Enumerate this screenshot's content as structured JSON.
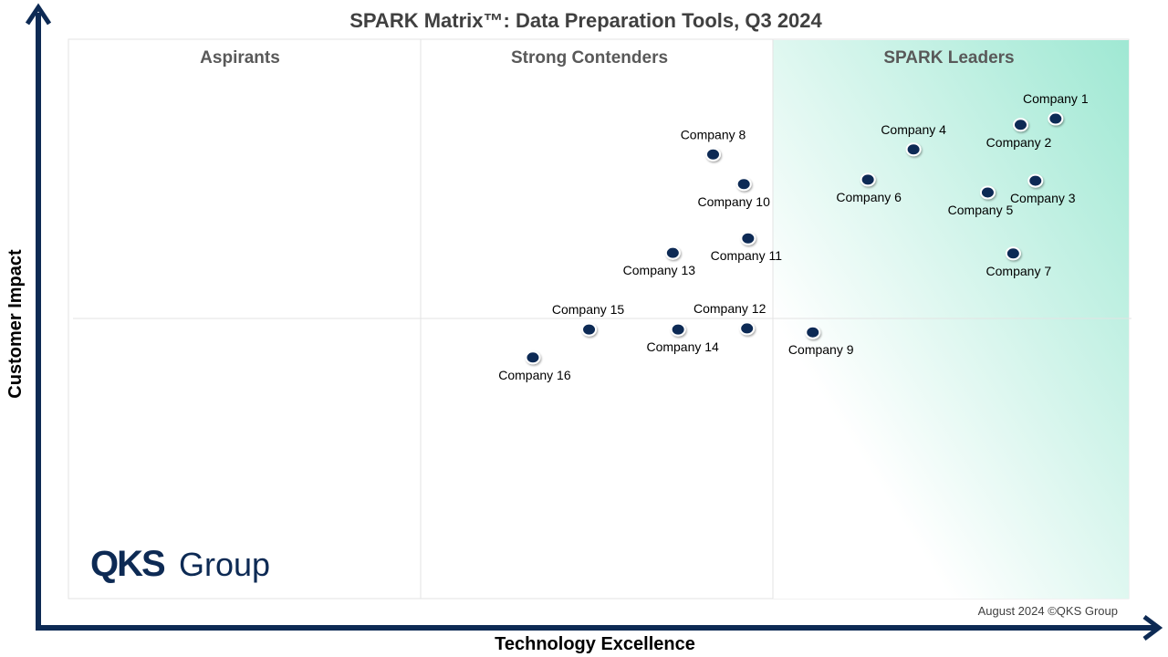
{
  "chart_data": {
    "type": "scatter",
    "title": "SPARK Matrix™: Data Preparation Tools, Q3 2024",
    "xlabel": "Technology Excellence",
    "ylabel": "Customer Impact",
    "xlim": [
      0,
      100
    ],
    "ylim": [
      0,
      100
    ],
    "grid": false,
    "quadrants": [
      "Aspirants",
      "Strong Contenders",
      "SPARK Leaders"
    ],
    "point_color": "#0d2a54",
    "leader_gradient": [
      "#ffffff",
      "#9fe8d3"
    ],
    "axis_color": "#0d2a54",
    "points": [
      {
        "name": "Company 1",
        "x": 93.1,
        "y": 85.8,
        "label": "above"
      },
      {
        "name": "Company 2",
        "x": 89.8,
        "y": 84.7,
        "label": "below"
      },
      {
        "name": "Company 3",
        "x": 91.2,
        "y": 74.7,
        "label": "below"
      },
      {
        "name": "Company 4",
        "x": 79.7,
        "y": 80.3,
        "label": "above"
      },
      {
        "name": "Company 5",
        "x": 86.7,
        "y": 72.6,
        "label": "below"
      },
      {
        "name": "Company 6",
        "x": 75.4,
        "y": 74.9,
        "label": "below"
      },
      {
        "name": "Company 7",
        "x": 89.1,
        "y": 61.7,
        "label": "below"
      },
      {
        "name": "Company 8",
        "x": 60.8,
        "y": 79.4,
        "label": "above"
      },
      {
        "name": "Company 9",
        "x": 70.2,
        "y": 47.6,
        "label": "below"
      },
      {
        "name": "Company 10",
        "x": 63.7,
        "y": 74.1,
        "label": "below"
      },
      {
        "name": "Company 11",
        "x": 64.1,
        "y": 64.4,
        "label": "below"
      },
      {
        "name": "Company 12",
        "x": 64.0,
        "y": 48.3,
        "label": "above"
      },
      {
        "name": "Company 13",
        "x": 57.0,
        "y": 61.8,
        "label": "below"
      },
      {
        "name": "Company 14",
        "x": 57.5,
        "y": 48.1,
        "label": "below"
      },
      {
        "name": "Company 15",
        "x": 49.1,
        "y": 48.1,
        "label": "above"
      },
      {
        "name": "Company 16",
        "x": 43.8,
        "y": 43.1,
        "label": "below"
      }
    ]
  },
  "logo": {
    "primary": "QKS",
    "secondary": "Group"
  },
  "footer": "August 2024 ©QKS Group"
}
